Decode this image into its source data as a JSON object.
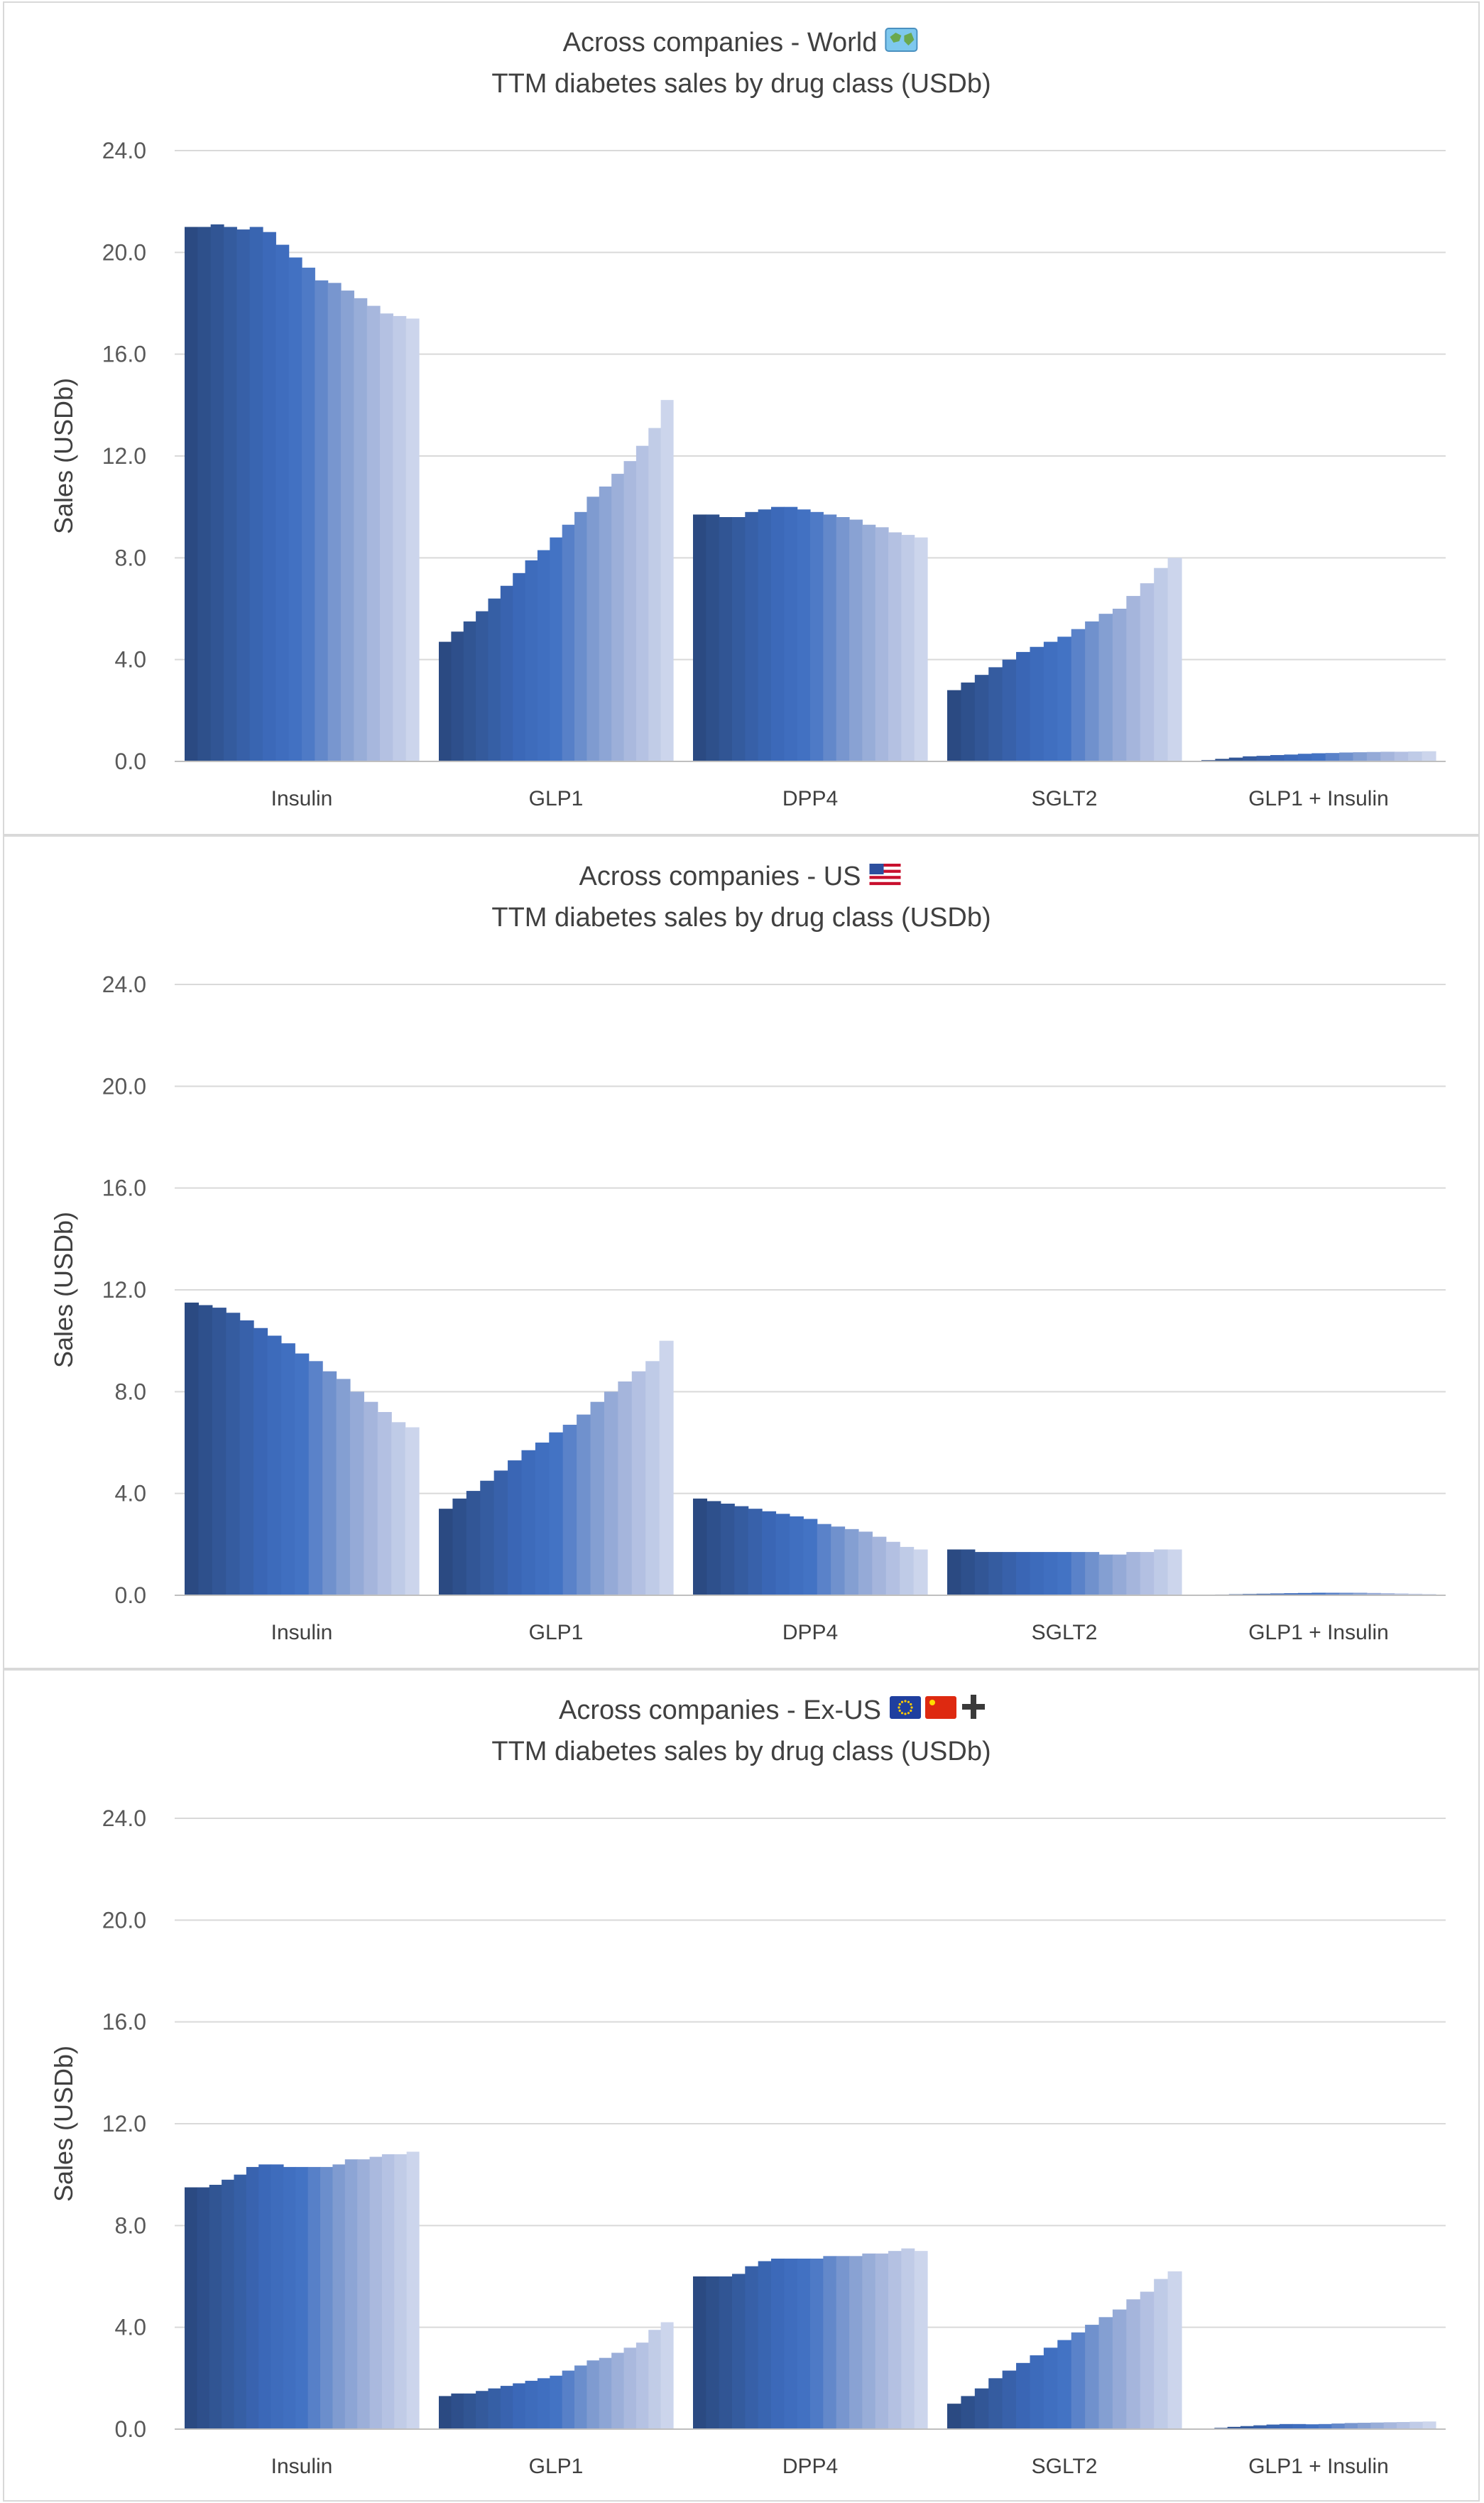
{
  "palette": [
    "#2b4a82",
    "#345a9c",
    "#3b68b8",
    "#4373c4",
    "#7f9bd0",
    "#aab9de",
    "#ccd5ec"
  ],
  "chart_data": [
    {
      "type": "bar",
      "title": "Across companies - World",
      "title_icon": "world-map-emoji",
      "subtitle": "TTM diabetes sales by drug class (USDb)",
      "ylabel": "Sales (USDb)",
      "ylim": [
        0,
        24
      ],
      "yticks": [
        "0.0",
        "4.0",
        "8.0",
        "12.0",
        "16.0",
        "20.0",
        "24.0"
      ],
      "grid": true,
      "categories": [
        "Insulin",
        "GLP1",
        "DPP4",
        "SGLT2",
        "GLP1 + Insulin"
      ],
      "groups": [
        [
          21.0,
          21.0,
          21.1,
          21.0,
          20.9,
          21.0,
          20.8,
          20.3,
          19.8,
          19.4,
          18.9,
          18.8,
          18.5,
          18.2,
          17.9,
          17.6,
          17.5,
          17.4
        ],
        [
          4.7,
          5.1,
          5.5,
          5.9,
          6.4,
          6.9,
          7.4,
          7.9,
          8.3,
          8.8,
          9.3,
          9.8,
          10.4,
          10.8,
          11.3,
          11.8,
          12.4,
          13.1,
          14.2
        ],
        [
          9.7,
          9.7,
          9.6,
          9.6,
          9.8,
          9.9,
          10.0,
          10.0,
          9.9,
          9.8,
          9.7,
          9.6,
          9.5,
          9.3,
          9.2,
          9.0,
          8.9,
          8.8
        ],
        [
          2.8,
          3.1,
          3.4,
          3.7,
          4.0,
          4.3,
          4.5,
          4.7,
          4.9,
          5.2,
          5.5,
          5.8,
          6.0,
          6.5,
          7.0,
          7.6,
          8.0
        ],
        [
          0.05,
          0.1,
          0.15,
          0.2,
          0.22,
          0.25,
          0.27,
          0.3,
          0.32,
          0.33,
          0.35,
          0.36,
          0.37,
          0.38,
          0.38,
          0.39,
          0.4
        ]
      ]
    },
    {
      "type": "bar",
      "title": "Across companies - US",
      "title_icon": "us-flag-emoji",
      "subtitle": "TTM diabetes sales by drug class (USDb)",
      "ylabel": "Sales (USDb)",
      "ylim": [
        0,
        24
      ],
      "yticks": [
        "0.0",
        "4.0",
        "8.0",
        "12.0",
        "16.0",
        "20.0",
        "24.0"
      ],
      "grid": true,
      "categories": [
        "Insulin",
        "GLP1",
        "DPP4",
        "SGLT2",
        "GLP1 + Insulin"
      ],
      "groups": [
        [
          11.5,
          11.4,
          11.3,
          11.1,
          10.8,
          10.5,
          10.2,
          9.9,
          9.5,
          9.2,
          8.8,
          8.5,
          8.0,
          7.6,
          7.2,
          6.8,
          6.6
        ],
        [
          3.4,
          3.8,
          4.1,
          4.5,
          4.9,
          5.3,
          5.7,
          6.0,
          6.4,
          6.7,
          7.1,
          7.6,
          8.0,
          8.4,
          8.8,
          9.2,
          10.0
        ],
        [
          3.8,
          3.7,
          3.6,
          3.5,
          3.4,
          3.3,
          3.2,
          3.1,
          3.0,
          2.8,
          2.7,
          2.6,
          2.5,
          2.3,
          2.1,
          1.9,
          1.8
        ],
        [
          1.8,
          1.8,
          1.7,
          1.7,
          1.7,
          1.7,
          1.7,
          1.7,
          1.7,
          1.7,
          1.7,
          1.6,
          1.6,
          1.7,
          1.7,
          1.8,
          1.8
        ],
        [
          0.02,
          0.03,
          0.04,
          0.05,
          0.06,
          0.07,
          0.08,
          0.09,
          0.1,
          0.1,
          0.1,
          0.1,
          0.09,
          0.08,
          0.07,
          0.06,
          0.05
        ]
      ]
    },
    {
      "type": "bar",
      "title": "Across companies - Ex-US",
      "title_icon": "eu-china-flags-plus-emoji",
      "subtitle": "TTM diabetes sales by drug class (USDb)",
      "ylabel": "Sales (USDb)",
      "ylim": [
        0,
        24
      ],
      "yticks": [
        "0.0",
        "4.0",
        "8.0",
        "12.0",
        "16.0",
        "20.0",
        "24.0"
      ],
      "grid": true,
      "categories": [
        "Insulin",
        "GLP1",
        "DPP4",
        "SGLT2",
        "GLP1 + Insulin"
      ],
      "groups": [
        [
          9.5,
          9.5,
          9.6,
          9.8,
          10.0,
          10.3,
          10.4,
          10.4,
          10.3,
          10.3,
          10.3,
          10.3,
          10.4,
          10.6,
          10.6,
          10.7,
          10.8,
          10.8,
          10.9
        ],
        [
          1.3,
          1.4,
          1.4,
          1.5,
          1.6,
          1.7,
          1.8,
          1.9,
          2.0,
          2.1,
          2.3,
          2.5,
          2.7,
          2.8,
          3.0,
          3.2,
          3.4,
          3.9,
          4.2
        ],
        [
          6.0,
          6.0,
          6.0,
          6.1,
          6.4,
          6.6,
          6.7,
          6.7,
          6.7,
          6.7,
          6.8,
          6.8,
          6.8,
          6.9,
          6.9,
          7.0,
          7.1,
          7.0
        ],
        [
          1.0,
          1.3,
          1.6,
          2.0,
          2.3,
          2.6,
          2.9,
          3.2,
          3.5,
          3.8,
          4.1,
          4.4,
          4.7,
          5.1,
          5.4,
          5.9,
          6.2
        ],
        [
          0.02,
          0.05,
          0.09,
          0.12,
          0.15,
          0.18,
          0.2,
          0.2,
          0.19,
          0.2,
          0.22,
          0.24,
          0.25,
          0.26,
          0.27,
          0.28,
          0.29,
          0.3
        ]
      ]
    }
  ]
}
